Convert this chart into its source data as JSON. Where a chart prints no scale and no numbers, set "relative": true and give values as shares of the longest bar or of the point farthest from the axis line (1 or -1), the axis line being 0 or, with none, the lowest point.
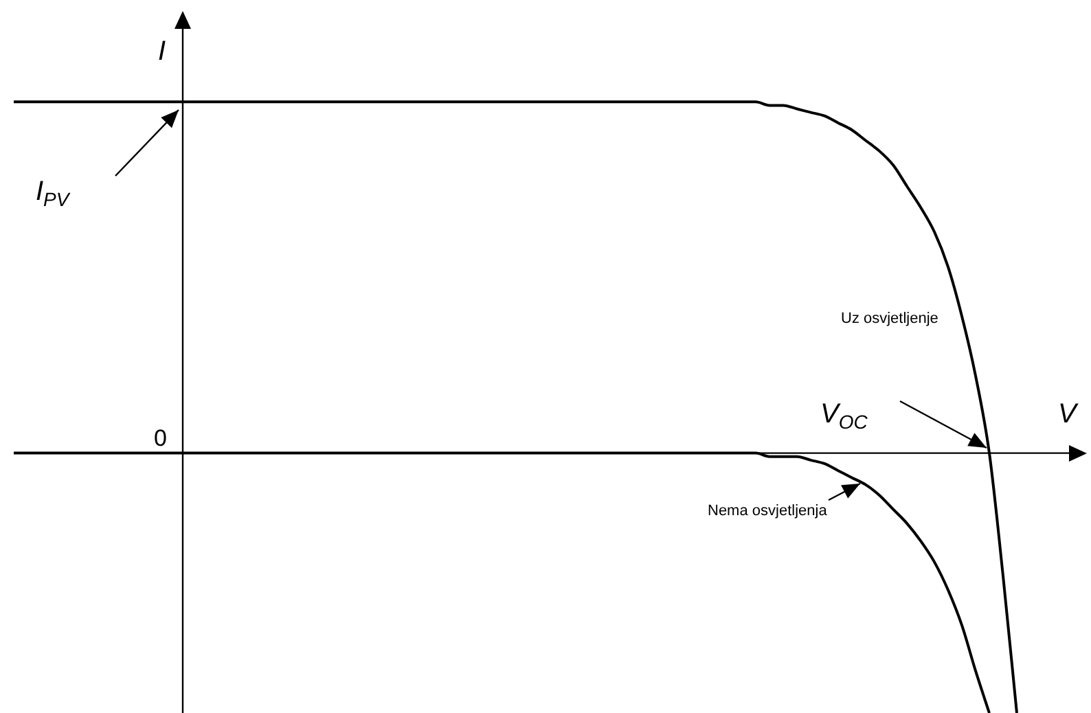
{
  "chart_data": {
    "type": "line",
    "relative": true,
    "xlabel": "V",
    "ylabel": "I",
    "legend": false,
    "tick_labels": false,
    "marker": "none",
    "line_style": "solid",
    "categories": [
      null,
      null,
      null,
      null,
      null,
      null,
      null,
      null,
      null,
      null,
      null,
      null,
      null,
      null,
      null,
      null,
      null,
      null,
      null,
      null,
      null,
      null,
      null,
      null,
      null,
      null,
      null,
      null,
      null,
      null,
      null,
      null,
      null,
      null,
      null,
      null,
      null,
      null,
      null,
      null,
      null,
      null,
      null,
      null,
      null,
      null,
      null,
      null,
      null,
      null,
      null,
      null,
      null,
      null,
      null,
      null,
      null,
      null,
      null,
      null,
      null,
      null,
      null,
      null,
      null,
      null,
      null,
      null,
      null,
      null,
      null,
      null,
      null,
      null
    ],
    "series": [
      {
        "name": "Uz osvjetljenje",
        "color": "#000000",
        "values": [
          1,
          1,
          1,
          1,
          1,
          1,
          1,
          1,
          1,
          1,
          1,
          1,
          1,
          1,
          1,
          1,
          1,
          1,
          1,
          1,
          1,
          1,
          1,
          1,
          1,
          1,
          1,
          1,
          1,
          1,
          1,
          1,
          1,
          1,
          1,
          1,
          1,
          1,
          1,
          1,
          1,
          1,
          1,
          1,
          1,
          1,
          1,
          1,
          1,
          1,
          1,
          1,
          1,
          1,
          1,
          0.99,
          0.99,
          0.98,
          0.97,
          0.96,
          0.94,
          0.92,
          0.89,
          0.86,
          0.82,
          0.76,
          0.7,
          0.63,
          0.53,
          0.39,
          0.22,
          0,
          -0.35,
          -0.74
        ]
      },
      {
        "name": "Nema osvjetljenja",
        "color": "#000000",
        "values": [
          0,
          0,
          0,
          0,
          0,
          0,
          0,
          0,
          0,
          0,
          0,
          0,
          0,
          0,
          0,
          0,
          0,
          0,
          0,
          0,
          0,
          0,
          0,
          0,
          0,
          0,
          0,
          0,
          0,
          0,
          0,
          0,
          0,
          0,
          0,
          0,
          0,
          0,
          0,
          0,
          0,
          0,
          0,
          0,
          0,
          0,
          0,
          0,
          0,
          0,
          0,
          0,
          0,
          0,
          0,
          -0.01,
          -0.01,
          -0.01,
          -0.02,
          -0.03,
          -0.05,
          -0.07,
          -0.09,
          -0.12,
          -0.16,
          -0.2,
          -0.25,
          -0.31,
          -0.39,
          -0.49,
          -0.62,
          -0.74,
          null,
          null
        ]
      }
    ],
    "annotations": [
      "I$_{PV}$",
      "V$_{OC}$",
      "0"
    ]
  }
}
